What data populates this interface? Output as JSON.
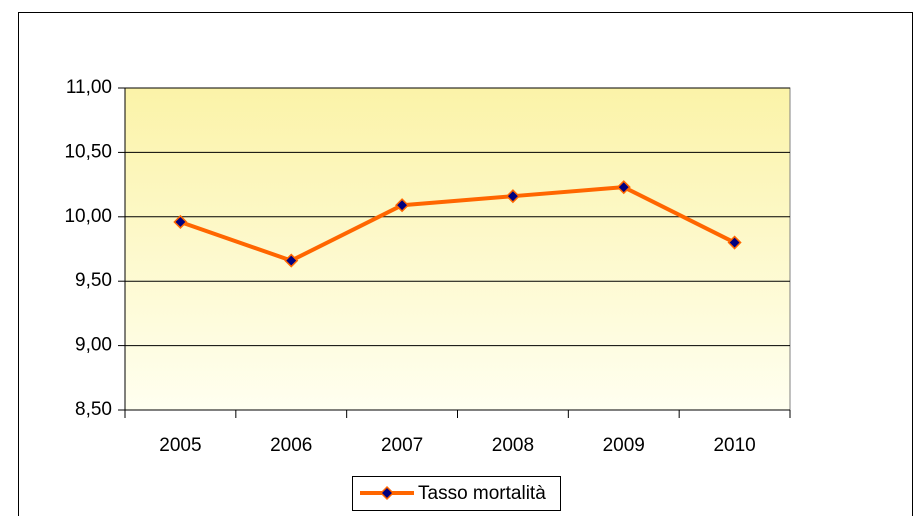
{
  "chart_data": {
    "type": "line",
    "categories": [
      "2005",
      "2006",
      "2007",
      "2008",
      "2009",
      "2010"
    ],
    "series": [
      {
        "name": "Tasso mortalità",
        "color": "#ff6600",
        "marker_color": "#000080",
        "values": [
          9.96,
          9.66,
          10.09,
          10.16,
          10.23,
          9.8
        ]
      }
    ],
    "ylim": [
      8.5,
      11
    ],
    "yticks": [
      {
        "value": 8.5,
        "label": "8,50"
      },
      {
        "value": 9,
        "label": "9,00"
      },
      {
        "value": 9.5,
        "label": "9,50"
      },
      {
        "value": 10,
        "label": "10,00"
      },
      {
        "value": 10.5,
        "label": "10,50"
      },
      {
        "value": 11,
        "label": "11,00"
      }
    ],
    "grid": true,
    "legend": "bottom"
  }
}
